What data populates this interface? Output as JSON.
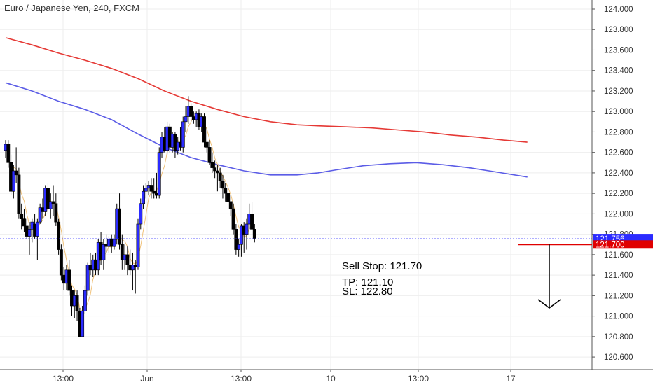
{
  "chart_data": {
    "type": "candlestick",
    "title": "Euro / Japanese Yen, 240, FXCM",
    "x_ticks": [
      "13:00",
      "Jun",
      "13:00",
      "10",
      "13:00",
      "17"
    ],
    "y_ticks": [
      "124.000",
      "123.800",
      "123.600",
      "123.400",
      "123.200",
      "123.000",
      "122.800",
      "122.600",
      "122.400",
      "122.200",
      "122.000",
      "121.800",
      "121.600",
      "121.400",
      "121.200",
      "121.000",
      "120.800",
      "120.600"
    ],
    "ylim": [
      120.5,
      124.1
    ],
    "last_price": 121.756,
    "last_price_label": "121.756",
    "entry_level": 121.7,
    "entry_label": "121.700",
    "candles": [
      [
        122.62,
        122.72,
        122.55,
        122.68
      ],
      [
        122.68,
        122.72,
        122.45,
        122.5
      ],
      [
        122.5,
        122.58,
        122.18,
        122.22
      ],
      [
        122.22,
        122.48,
        122.15,
        122.42
      ],
      [
        122.42,
        122.65,
        122.3,
        122.38
      ],
      [
        122.38,
        122.45,
        121.95,
        122.0
      ],
      [
        122.0,
        122.1,
        121.85,
        121.95
      ],
      [
        121.95,
        122.05,
        121.82,
        121.88
      ],
      [
        121.88,
        121.95,
        121.75,
        121.78
      ],
      [
        121.78,
        121.92,
        121.6,
        121.85
      ],
      [
        121.85,
        121.95,
        121.72,
        121.92
      ],
      [
        121.9,
        122.0,
        121.75,
        121.78
      ],
      [
        121.78,
        121.95,
        121.55,
        121.92
      ],
      [
        121.92,
        122.1,
        121.9,
        122.06
      ],
      [
        122.06,
        122.15,
        121.95,
        122.02
      ],
      [
        122.02,
        122.28,
        121.98,
        122.25
      ],
      [
        122.25,
        122.3,
        122.0,
        122.05
      ],
      [
        122.05,
        122.2,
        121.95,
        122.12
      ],
      [
        122.12,
        122.28,
        121.98,
        122.1
      ],
      [
        122.1,
        122.2,
        121.88,
        121.92
      ],
      [
        121.92,
        121.95,
        121.6,
        121.65
      ],
      [
        121.65,
        121.7,
        121.35,
        121.4
      ],
      [
        121.4,
        121.48,
        121.25,
        121.32
      ],
      [
        121.32,
        121.5,
        121.25,
        121.45
      ],
      [
        121.45,
        121.55,
        121.2,
        121.25
      ],
      [
        121.25,
        121.3,
        121.0,
        121.1
      ],
      [
        121.1,
        121.25,
        120.98,
        121.2
      ],
      [
        121.2,
        121.25,
        120.95,
        121.05
      ],
      [
        121.05,
        121.08,
        120.8,
        120.8
      ],
      [
        120.8,
        121.1,
        120.8,
        121.05
      ],
      [
        121.05,
        121.3,
        121.02,
        121.25
      ],
      [
        121.25,
        121.52,
        121.2,
        121.5
      ],
      [
        121.5,
        121.62,
        121.4,
        121.45
      ],
      [
        121.45,
        121.6,
        121.38,
        121.55
      ],
      [
        121.55,
        121.62,
        121.4,
        121.45
      ],
      [
        121.45,
        121.75,
        121.4,
        121.72
      ],
      [
        121.72,
        121.82,
        121.5,
        121.55
      ],
      [
        121.55,
        121.75,
        121.45,
        121.7
      ],
      [
        121.7,
        121.8,
        121.62,
        121.68
      ],
      [
        121.68,
        121.78,
        121.62,
        121.75
      ],
      [
        121.75,
        121.8,
        121.62,
        121.68
      ],
      [
        121.68,
        121.8,
        121.65,
        121.75
      ],
      [
        121.75,
        122.1,
        121.7,
        122.05
      ],
      [
        122.05,
        122.2,
        121.65,
        121.7
      ],
      [
        121.7,
        121.8,
        121.45,
        121.55
      ],
      [
        121.55,
        121.7,
        121.45,
        121.6
      ],
      [
        121.6,
        121.68,
        121.4,
        121.5
      ],
      [
        121.5,
        121.65,
        121.4,
        121.45
      ],
      [
        121.45,
        121.62,
        121.25,
        121.5
      ],
      [
        121.5,
        121.55,
        121.22,
        121.48
      ],
      [
        121.48,
        121.95,
        121.45,
        121.9
      ],
      [
        121.9,
        122.15,
        121.85,
        122.1
      ],
      [
        122.1,
        122.28,
        122.05,
        122.22
      ],
      [
        122.22,
        122.3,
        122.15,
        122.25
      ],
      [
        122.25,
        122.32,
        122.18,
        122.28
      ],
      [
        122.28,
        122.35,
        122.15,
        122.22
      ],
      [
        122.22,
        122.35,
        122.15,
        122.2
      ],
      [
        122.2,
        122.4,
        122.15,
        122.18
      ],
      [
        122.18,
        122.65,
        122.15,
        122.6
      ],
      [
        122.6,
        122.8,
        122.55,
        122.75
      ],
      [
        122.75,
        122.85,
        122.6,
        122.62
      ],
      [
        122.62,
        122.9,
        122.58,
        122.85
      ],
      [
        122.85,
        122.88,
        122.6,
        122.65
      ],
      [
        122.65,
        122.8,
        122.6,
        122.78
      ],
      [
        122.78,
        122.8,
        122.55,
        122.62
      ],
      [
        122.62,
        122.75,
        122.58,
        122.7
      ],
      [
        122.7,
        122.85,
        122.62,
        122.65
      ],
      [
        122.65,
        122.95,
        122.6,
        122.9
      ],
      [
        122.9,
        123.05,
        122.8,
        122.95
      ],
      [
        122.95,
        123.15,
        122.88,
        123.05
      ],
      [
        123.05,
        123.08,
        122.9,
        122.95
      ],
      [
        122.95,
        123.0,
        122.88,
        122.92
      ],
      [
        122.92,
        123.0,
        122.85,
        122.98
      ],
      [
        122.98,
        123.02,
        122.82,
        122.85
      ],
      [
        122.85,
        122.98,
        122.8,
        122.95
      ],
      [
        122.95,
        122.98,
        122.65,
        122.7
      ],
      [
        122.7,
        122.85,
        122.6,
        122.65
      ],
      [
        122.65,
        122.72,
        122.48,
        122.5
      ],
      [
        122.5,
        122.6,
        122.4,
        122.45
      ],
      [
        122.45,
        122.52,
        122.35,
        122.42
      ],
      [
        122.42,
        122.48,
        122.22,
        122.4
      ],
      [
        122.4,
        122.45,
        122.25,
        122.32
      ],
      [
        122.32,
        122.38,
        122.15,
        122.25
      ],
      [
        122.25,
        122.3,
        122.12,
        122.2
      ],
      [
        122.2,
        122.25,
        122.05,
        122.12
      ],
      [
        122.12,
        122.18,
        121.98,
        122.05
      ],
      [
        122.05,
        122.1,
        121.8,
        121.85
      ],
      [
        121.85,
        121.9,
        121.6,
        121.65
      ],
      [
        121.65,
        121.75,
        121.58,
        121.7
      ],
      [
        121.7,
        121.9,
        121.58,
        121.88
      ],
      [
        121.88,
        121.92,
        121.62,
        121.8
      ],
      [
        121.8,
        121.95,
        121.65,
        121.9
      ],
      [
        121.9,
        122.1,
        121.85,
        122.0
      ],
      [
        122.0,
        122.12,
        121.8,
        121.85
      ],
      [
        121.85,
        121.9,
        121.72,
        121.76
      ]
    ],
    "series": [
      {
        "name": "",
        "color": "#e53935",
        "points": [
          [
            0,
            123.72
          ],
          [
            10,
            123.65
          ],
          [
            20,
            123.57
          ],
          [
            30,
            123.5
          ],
          [
            40,
            123.42
          ],
          [
            50,
            123.32
          ],
          [
            60,
            123.2
          ],
          [
            70,
            123.1
          ],
          [
            80,
            123.02
          ],
          [
            90,
            122.95
          ],
          [
            100,
            122.9
          ],
          [
            110,
            122.87
          ],
          [
            118,
            122.86
          ],
          [
            128,
            122.85
          ],
          [
            138,
            122.84
          ],
          [
            148,
            122.82
          ],
          [
            158,
            122.8
          ],
          [
            168,
            122.77
          ],
          [
            178,
            122.75
          ],
          [
            188,
            122.72
          ],
          [
            197,
            122.7
          ]
        ]
      },
      {
        "name": "",
        "color": "#5b5ce6",
        "points": [
          [
            0,
            123.28
          ],
          [
            10,
            123.2
          ],
          [
            20,
            123.1
          ],
          [
            30,
            123.02
          ],
          [
            40,
            122.92
          ],
          [
            50,
            122.78
          ],
          [
            60,
            122.65
          ],
          [
            70,
            122.55
          ],
          [
            80,
            122.48
          ],
          [
            90,
            122.42
          ],
          [
            100,
            122.38
          ],
          [
            110,
            122.38
          ],
          [
            118,
            122.4
          ],
          [
            125,
            122.43
          ],
          [
            135,
            122.47
          ],
          [
            145,
            122.49
          ],
          [
            155,
            122.5
          ],
          [
            165,
            122.48
          ],
          [
            175,
            122.45
          ],
          [
            185,
            122.41
          ],
          [
            197,
            122.36
          ]
        ]
      },
      {
        "name": "",
        "color": "#f0c27a",
        "source": "close_ma"
      }
    ]
  },
  "annotations": {
    "sell_stop": "Sell Stop: 121.70",
    "tp": "TP: 121.10",
    "sl": "SL: 122.80"
  },
  "colors": {
    "bull": "#2b2bff",
    "bear": "#000000",
    "price_line": "#2b2bff",
    "entry_line": "#e00000",
    "grid": "#eeeeee",
    "axis_text": "#333333"
  }
}
